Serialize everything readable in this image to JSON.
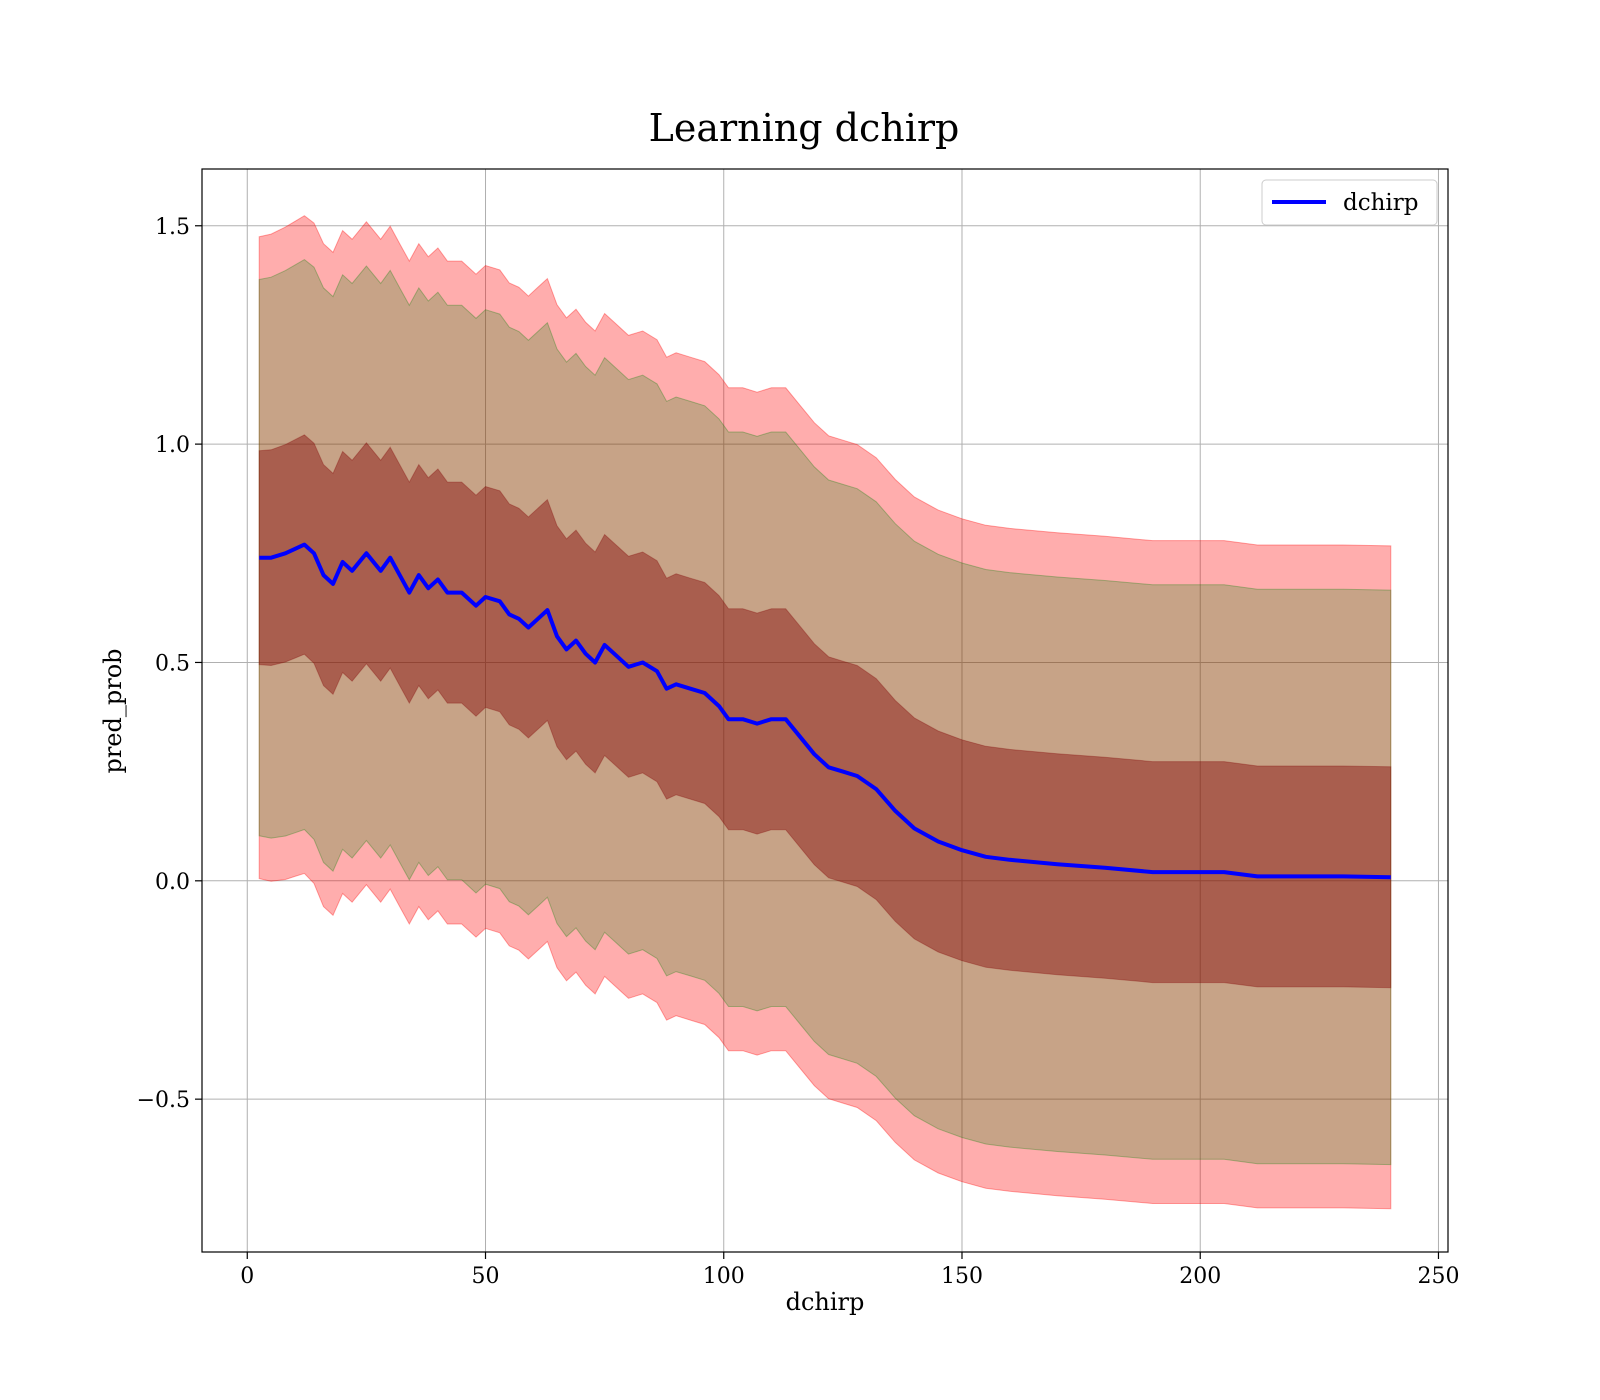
{
  "chart_data": {
    "type": "line",
    "title": "Learning dchirp",
    "xlabel": "dchirp",
    "ylabel": "pred_prob",
    "xlim": [
      -9.5,
      252
    ],
    "ylim": [
      -0.85,
      1.63
    ],
    "xticks": [
      0,
      50,
      100,
      150,
      200,
      250
    ],
    "yticks": [
      -0.5,
      0.0,
      0.5,
      1.0,
      1.5
    ],
    "xtick_labels": [
      "0",
      "50",
      "100",
      "150",
      "200",
      "250"
    ],
    "ytick_labels": [
      "−0.5",
      "0.0",
      "0.5",
      "1.0",
      "1.5"
    ],
    "grid": true,
    "legend": {
      "position": "top-right",
      "entries": [
        "dchirp"
      ]
    },
    "colors": {
      "line": "#0000ff",
      "band_outer": "#ff0000",
      "band_outer_opacity": 0.32,
      "band_inner": "#008000",
      "band_inner_opacity": 0.22,
      "band_core": "#800000",
      "band_core_opacity": 0.42
    },
    "series": [
      {
        "name": "dchirp",
        "x": [
          2.5,
          5,
          8,
          10,
          12,
          14,
          16,
          18,
          20,
          22,
          25,
          28,
          30,
          32,
          34,
          36,
          38,
          40,
          42,
          45,
          48,
          50,
          53,
          55,
          57,
          59,
          61,
          63,
          65,
          67,
          69,
          71,
          73,
          75,
          77,
          80,
          83,
          86,
          88,
          90,
          93,
          96,
          99,
          101,
          104,
          107,
          110,
          113,
          116,
          119,
          122,
          125,
          128,
          132,
          136,
          140,
          145,
          150,
          155,
          160,
          170,
          180,
          190,
          200,
          205,
          212,
          220,
          230,
          240
        ],
        "y": [
          0.74,
          0.74,
          0.75,
          0.76,
          0.77,
          0.75,
          0.7,
          0.68,
          0.73,
          0.71,
          0.75,
          0.71,
          0.74,
          0.7,
          0.66,
          0.7,
          0.67,
          0.69,
          0.66,
          0.66,
          0.63,
          0.65,
          0.64,
          0.61,
          0.6,
          0.58,
          0.6,
          0.62,
          0.56,
          0.53,
          0.55,
          0.52,
          0.5,
          0.54,
          0.52,
          0.49,
          0.5,
          0.48,
          0.44,
          0.45,
          0.44,
          0.43,
          0.4,
          0.37,
          0.37,
          0.36,
          0.37,
          0.37,
          0.33,
          0.29,
          0.26,
          0.25,
          0.24,
          0.21,
          0.16,
          0.12,
          0.09,
          0.07,
          0.055,
          0.048,
          0.038,
          0.03,
          0.02,
          0.02,
          0.02,
          0.01,
          0.01,
          0.01,
          0.008
        ],
        "std": [
          0.245,
          0.247,
          0.249,
          0.25,
          0.251,
          0.252,
          0.253,
          0.253,
          0.253,
          0.253,
          0.253,
          0.253,
          0.253,
          0.253,
          0.253,
          0.253,
          0.253,
          0.253,
          0.253,
          0.253,
          0.253,
          0.253,
          0.253,
          0.253,
          0.253,
          0.253,
          0.253,
          0.253,
          0.253,
          0.253,
          0.253,
          0.253,
          0.253,
          0.253,
          0.253,
          0.253,
          0.253,
          0.253,
          0.253,
          0.253,
          0.253,
          0.253,
          0.253,
          0.253,
          0.253,
          0.253,
          0.253,
          0.253,
          0.253,
          0.253,
          0.253,
          0.253,
          0.253,
          0.253,
          0.253,
          0.253,
          0.253,
          0.253,
          0.253,
          0.253,
          0.253,
          0.253,
          0.253,
          0.253,
          0.253,
          0.253,
          0.253,
          0.253,
          0.253
        ]
      }
    ]
  }
}
